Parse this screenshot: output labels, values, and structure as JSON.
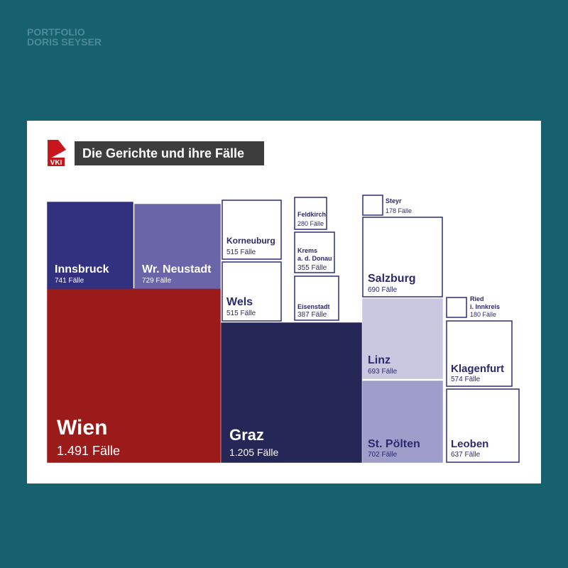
{
  "portfolio": {
    "line1": "PORTFOLIO",
    "line2": "DORIS SEYSER"
  },
  "logo": "VKI",
  "chart_data": {
    "type": "treemap",
    "title": "Die Gerichte und ihre Fälle",
    "categories": [
      "Wien",
      "Graz",
      "Innsbruck",
      "Wr. Neustadt",
      "St. Pölten",
      "Linz",
      "Salzburg",
      "Leoben",
      "Eisenstadt",
      "Klagenfurt",
      "Korneuburg",
      "Wels",
      [
        "Krems",
        "a. d. Donau"
      ],
      "Feldkirch",
      [
        "Ried",
        "i. Innkreis"
      ],
      "Steyr"
    ],
    "values": [
      1491,
      1205,
      741,
      729,
      702,
      693,
      690,
      637,
      387,
      574,
      515,
      515,
      355,
      280,
      180,
      178
    ],
    "value_labels": [
      "1.491 Fälle",
      "1.205 Fälle",
      "741 Fälle",
      "729 Fälle",
      "702 Fälle",
      "693 Fälle",
      "690 Fälle",
      "637 Fälle",
      "387 Fälle",
      "574 Fälle",
      "515 Fälle",
      "515 Fälle",
      "355 Fälle",
      "280 Fälle",
      "180 Fälle",
      "178 Fälle"
    ],
    "colors": [
      "#9b1b1b",
      "#262756",
      "#32317f",
      "#6a65a8",
      "#9f9dca",
      "#c9c8e0",
      "#ffffff",
      "#ffffff",
      "#ffffff",
      "#ffffff",
      "#ffffff",
      "#ffffff",
      "#ffffff",
      "#ffffff",
      "#ffffff",
      "#ffffff"
    ],
    "text_colors": [
      "#ffffff",
      "#ffffff",
      "#ffffff",
      "#ffffff",
      "#2a2a6c",
      "#2a2a6c",
      "#2a2a6c",
      "#2a2a6c",
      "#2a2a6c",
      "#2a2a6c",
      "#2a2a6c",
      "#2a2a6c",
      "#2a2a6c",
      "#2a2a6c",
      "#2a2a6c",
      "#2a2a6c"
    ]
  }
}
